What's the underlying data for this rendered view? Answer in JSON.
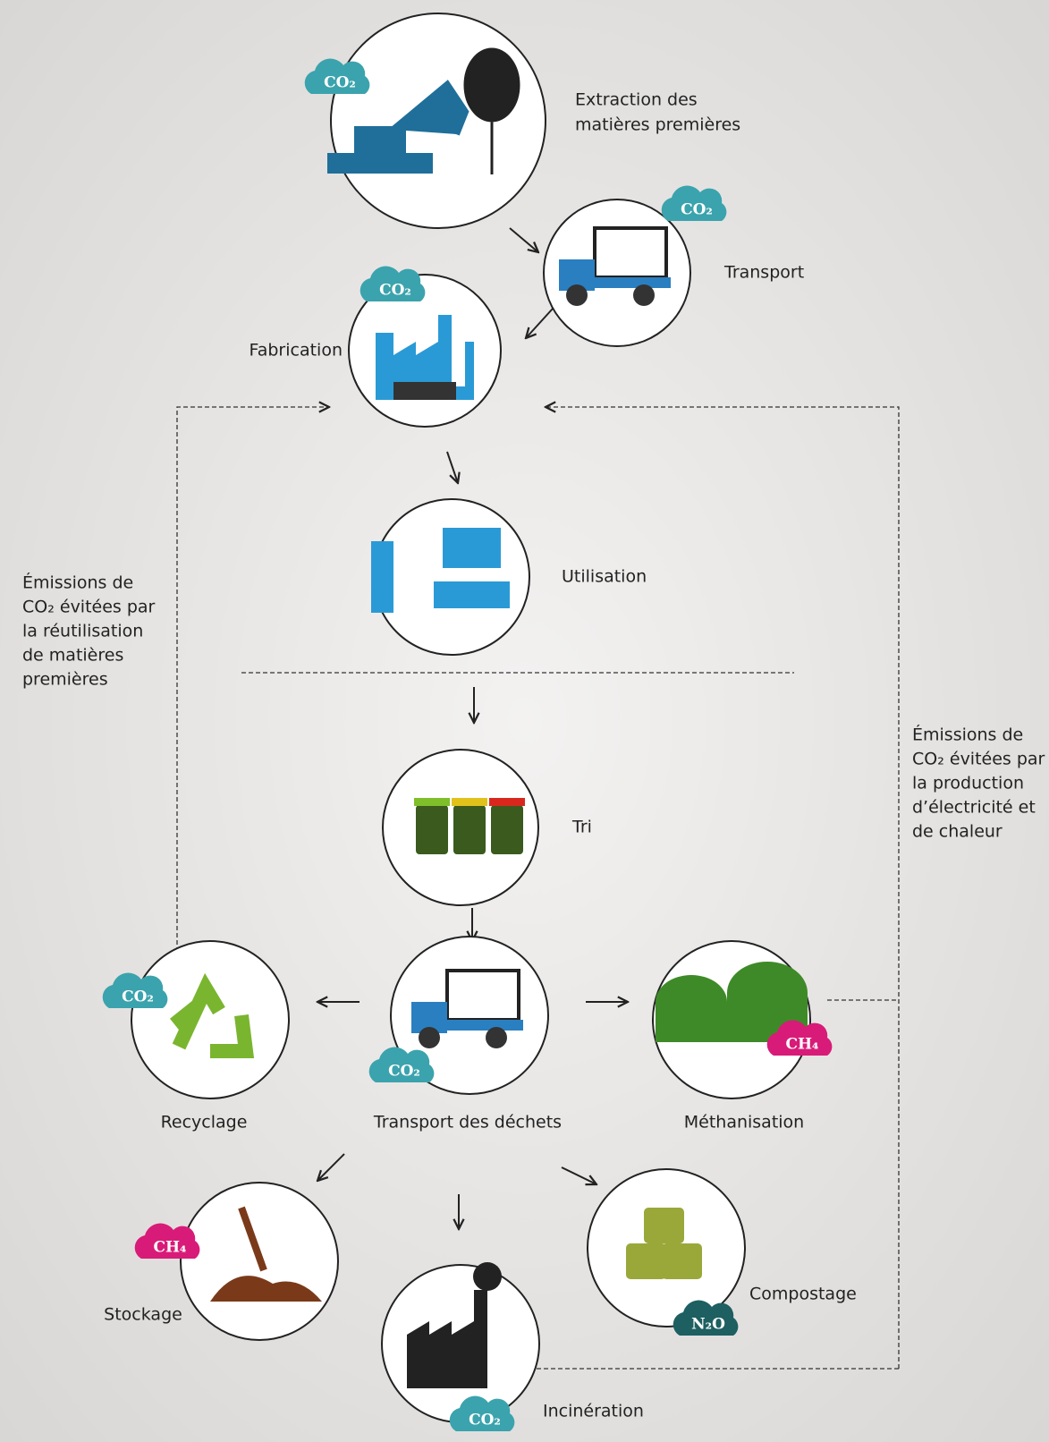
{
  "nodes": [
    {
      "label": [
        "Extraction des",
        "matières premières"
      ],
      "badge": "CO₂"
    },
    {
      "label": [
        "Transport"
      ],
      "badge": "CO₂"
    },
    {
      "label": [
        "Fabrication"
      ],
      "badge": "CO₂"
    },
    {
      "label": [
        "Utilisation"
      ]
    },
    {
      "label": [
        "Tri"
      ]
    },
    {
      "label": [
        "Recyclage"
      ],
      "badge": "CO₂"
    },
    {
      "label": [
        "Transport des déchets"
      ],
      "badge": "CO₂"
    },
    {
      "label": [
        "Méthanisation"
      ],
      "badge": "CH₄"
    },
    {
      "label": [
        "Stockage"
      ],
      "badge": "CH₄"
    },
    {
      "label": [
        "Incinération"
      ],
      "badge": "CO₂"
    },
    {
      "label": [
        "Compostage"
      ],
      "badge": "N₂O"
    }
  ],
  "notes": [
    {
      "lines": [
        "Émissions de",
        "CO₂ évitées par",
        "la réutilisation",
        "de matières",
        "premières"
      ]
    },
    {
      "lines": [
        "Émissions de",
        "CO₂ évitées par",
        "la production",
        "d’électricité et",
        "de chaleur"
      ]
    }
  ]
}
